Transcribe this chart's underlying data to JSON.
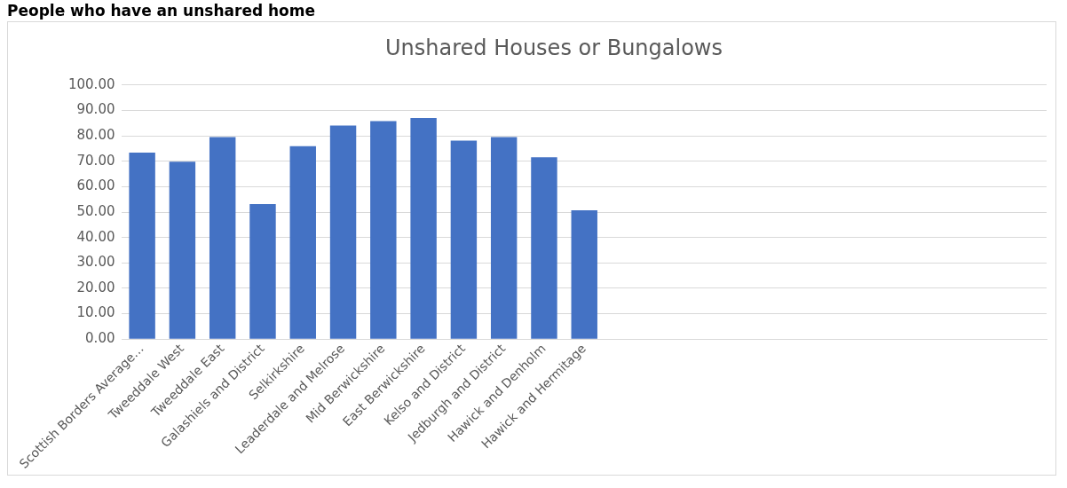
{
  "chart_data": {
    "type": "bar",
    "title": "Unshared Houses or Bungalows",
    "annotations": [
      "People who have an unshared home"
    ],
    "categories": [
      "Scottish Borders Average…",
      "Tweeddale West",
      "Tweeddale East",
      "Galashiels and District",
      "Selkirkshire",
      "Leaderdale and Melrose",
      "Mid Berwickshire",
      "East Berwickshire",
      "Kelso and District",
      "Jedburgh and District",
      "Hawick and Denholm",
      "Hawick and Hermitage",
      null,
      null,
      null,
      null,
      null,
      null,
      null,
      null,
      null,
      null,
      null
    ],
    "values": [
      73.4,
      69.8,
      79.5,
      53.1,
      75.9,
      84.0,
      85.8,
      87.0,
      78.1,
      79.5,
      71.6,
      50.7,
      null,
      null,
      null,
      null,
      null,
      null,
      null,
      null,
      null,
      null,
      null
    ],
    "color": "#4472c4",
    "ylim": [
      0,
      100
    ],
    "yticks": [
      {
        "value": 0,
        "label": "0.00"
      },
      {
        "value": 10,
        "label": "10.00"
      },
      {
        "value": 20,
        "label": "20.00"
      },
      {
        "value": 30,
        "label": "30.00"
      },
      {
        "value": 40,
        "label": "40.00"
      },
      {
        "value": 50,
        "label": "50.00"
      },
      {
        "value": 60,
        "label": "60.00"
      },
      {
        "value": 70,
        "label": "70.00"
      },
      {
        "value": 80,
        "label": "80.00"
      },
      {
        "value": 90,
        "label": "90.00"
      },
      {
        "value": 100,
        "label": "100.00"
      }
    ],
    "grid": "y",
    "legend": false
  }
}
